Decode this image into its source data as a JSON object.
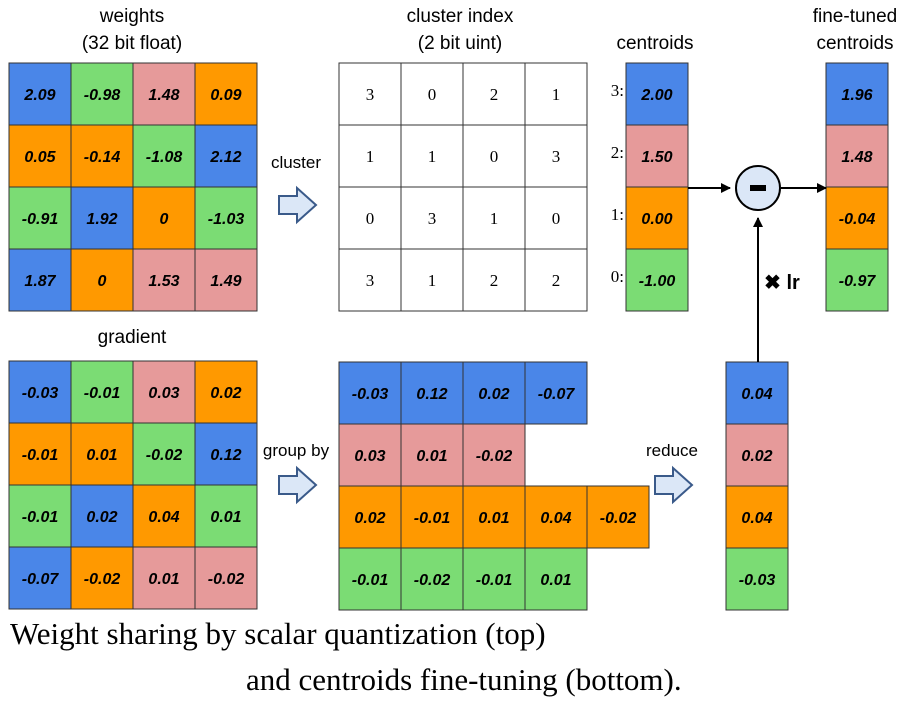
{
  "colors": {
    "blue": "#4a86e8",
    "green": "#7bdc74",
    "red": "#e69a9a",
    "orange": "#ff9900",
    "border": "#333333",
    "arrow_fill": "#dbe7f7"
  },
  "weights": {
    "title_line1": "weights",
    "title_line2": "(32 bit float)",
    "rows": [
      [
        {
          "v": "2.09",
          "c": "blue"
        },
        {
          "v": "-0.98",
          "c": "green"
        },
        {
          "v": "1.48",
          "c": "red"
        },
        {
          "v": "0.09",
          "c": "orange"
        }
      ],
      [
        {
          "v": "0.05",
          "c": "orange"
        },
        {
          "v": "-0.14",
          "c": "orange"
        },
        {
          "v": "-1.08",
          "c": "green"
        },
        {
          "v": "2.12",
          "c": "blue"
        }
      ],
      [
        {
          "v": "-0.91",
          "c": "green"
        },
        {
          "v": "1.92",
          "c": "blue"
        },
        {
          "v": "0",
          "c": "orange"
        },
        {
          "v": "-1.03",
          "c": "green"
        }
      ],
      [
        {
          "v": "1.87",
          "c": "blue"
        },
        {
          "v": "0",
          "c": "orange"
        },
        {
          "v": "1.53",
          "c": "red"
        },
        {
          "v": "1.49",
          "c": "red"
        }
      ]
    ]
  },
  "cluster_index": {
    "title_line1": "cluster index",
    "title_line2": "(2 bit uint)",
    "rows": [
      [
        "3",
        "0",
        "2",
        "1"
      ],
      [
        "1",
        "1",
        "0",
        "3"
      ],
      [
        "0",
        "3",
        "1",
        "0"
      ],
      [
        "3",
        "1",
        "2",
        "2"
      ]
    ]
  },
  "centroids": {
    "title": "centroids",
    "items": [
      {
        "label": "3:",
        "v": "2.00",
        "c": "blue"
      },
      {
        "label": "2:",
        "v": "1.50",
        "c": "red"
      },
      {
        "label": "1:",
        "v": "0.00",
        "c": "orange"
      },
      {
        "label": "0:",
        "v": "-1.00",
        "c": "green"
      }
    ]
  },
  "fine_tuned": {
    "title_line1": "fine-tuned",
    "title_line2": "centroids",
    "items": [
      {
        "v": "1.96",
        "c": "blue"
      },
      {
        "v": "1.48",
        "c": "red"
      },
      {
        "v": "-0.04",
        "c": "orange"
      },
      {
        "v": "-0.97",
        "c": "green"
      }
    ]
  },
  "gradient": {
    "title": "gradient",
    "rows": [
      [
        {
          "v": "-0.03",
          "c": "blue"
        },
        {
          "v": "-0.01",
          "c": "green"
        },
        {
          "v": "0.03",
          "c": "red"
        },
        {
          "v": "0.02",
          "c": "orange"
        }
      ],
      [
        {
          "v": "-0.01",
          "c": "orange"
        },
        {
          "v": "0.01",
          "c": "orange"
        },
        {
          "v": "-0.02",
          "c": "green"
        },
        {
          "v": "0.12",
          "c": "blue"
        }
      ],
      [
        {
          "v": "-0.01",
          "c": "green"
        },
        {
          "v": "0.02",
          "c": "blue"
        },
        {
          "v": "0.04",
          "c": "orange"
        },
        {
          "v": "0.01",
          "c": "green"
        }
      ],
      [
        {
          "v": "-0.07",
          "c": "blue"
        },
        {
          "v": "-0.02",
          "c": "orange"
        },
        {
          "v": "0.01",
          "c": "red"
        },
        {
          "v": "-0.02",
          "c": "red"
        }
      ]
    ]
  },
  "grouped": {
    "rows": [
      {
        "c": "blue",
        "values": [
          "-0.03",
          "0.12",
          "0.02",
          "-0.07"
        ]
      },
      {
        "c": "red",
        "values": [
          "0.03",
          "0.01",
          "-0.02"
        ]
      },
      {
        "c": "orange",
        "values": [
          "0.02",
          "-0.01",
          "0.01",
          "0.04",
          "-0.02"
        ]
      },
      {
        "c": "green",
        "values": [
          "-0.01",
          "-0.02",
          "-0.01",
          "0.01"
        ]
      }
    ]
  },
  "reduced": {
    "items": [
      {
        "v": "0.04",
        "c": "blue"
      },
      {
        "v": "0.02",
        "c": "red"
      },
      {
        "v": "0.04",
        "c": "orange"
      },
      {
        "v": "-0.03",
        "c": "green"
      }
    ]
  },
  "labels": {
    "cluster": "cluster",
    "group_by": "group by",
    "reduce": "reduce",
    "lr": "✖ lr",
    "minus": "-"
  },
  "caption": {
    "line1": "Weight sharing by scalar quantization (top)",
    "line2": "and centroids fine-tuning (bottom)."
  }
}
